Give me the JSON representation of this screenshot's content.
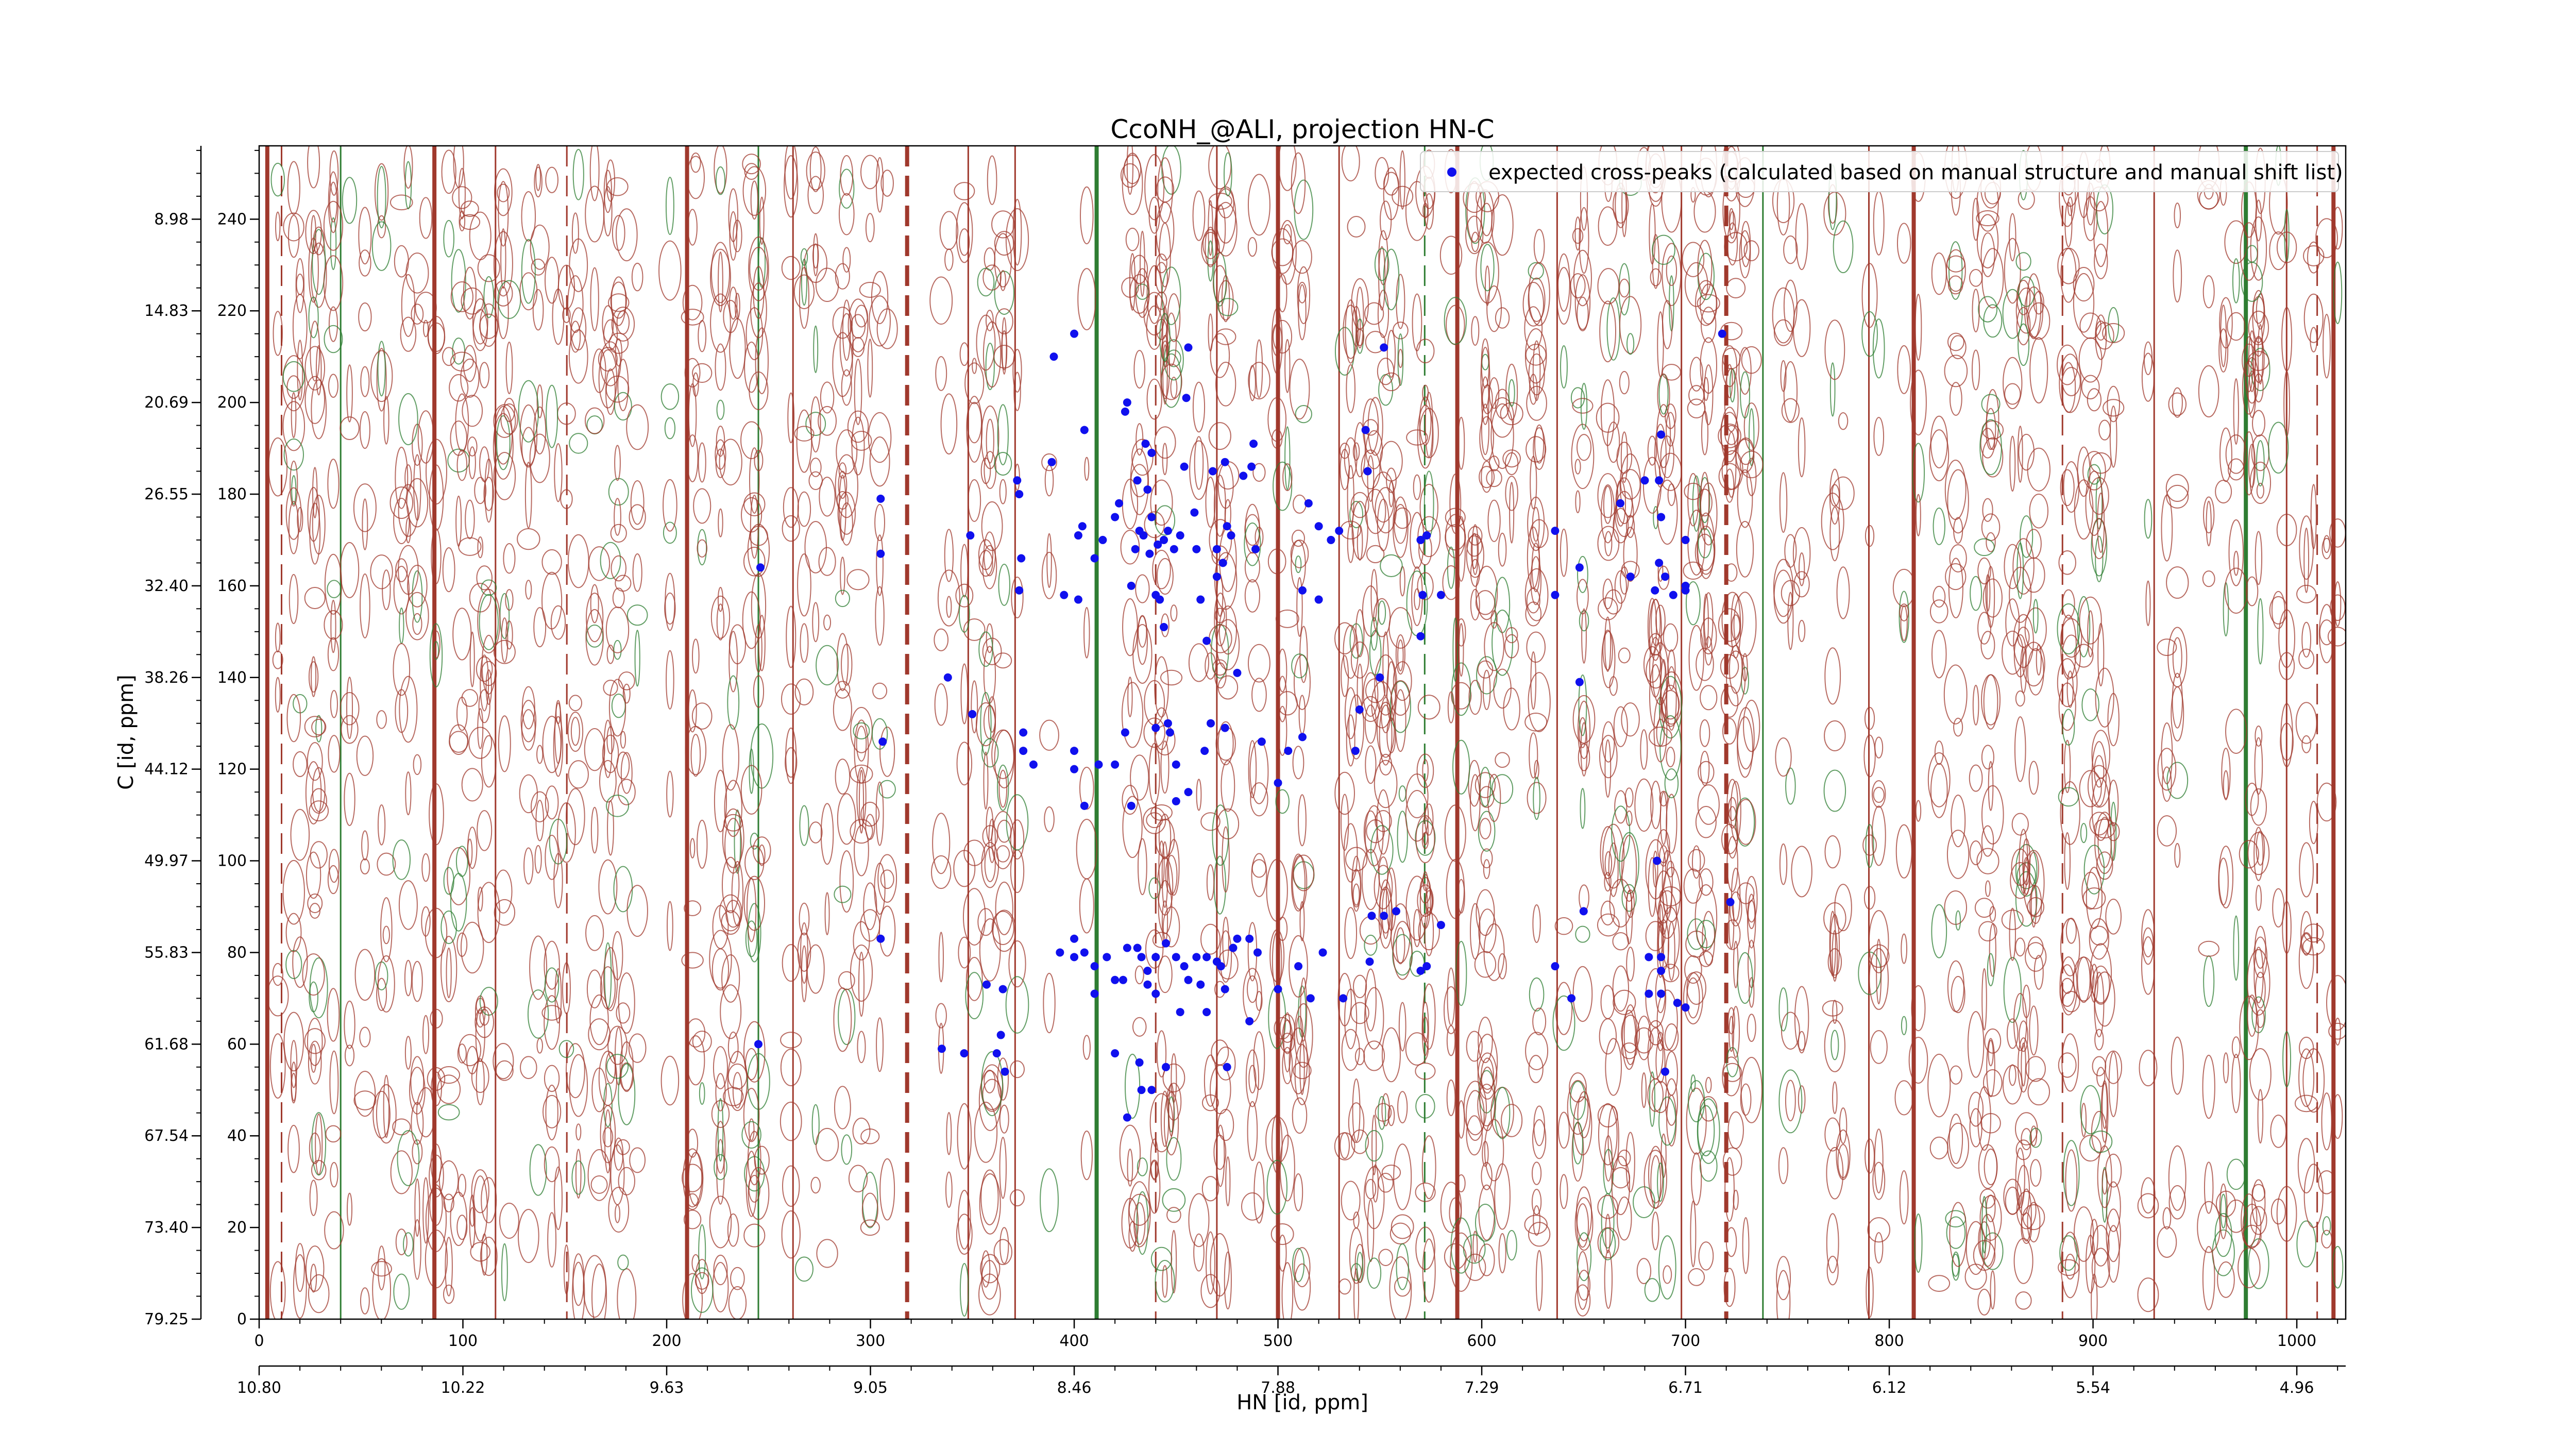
{
  "chart_data": {
    "type": "scatter",
    "title": "CcoNH_@ALI, projection HN-C",
    "xlabel": "HN [id, ppm]",
    "ylabel": "C [id, ppm]",
    "xlim": [
      0,
      1024
    ],
    "ylim": [
      0,
      256
    ],
    "x_ticks_index": [
      "0",
      "100",
      "200",
      "300",
      "400",
      "500",
      "600",
      "700",
      "800",
      "900",
      "1000"
    ],
    "x_ticks_ppm": [
      "10.80",
      "10.22",
      "9.63",
      "9.05",
      "8.46",
      "7.88",
      "7.29",
      "6.71",
      "6.12",
      "5.54",
      "4.96"
    ],
    "y_ticks_index": [
      "0",
      "20",
      "40",
      "60",
      "80",
      "100",
      "120",
      "140",
      "160",
      "180",
      "200",
      "220",
      "240"
    ],
    "y_ticks_ppm": [
      "79.25",
      "73.40",
      "67.54",
      "61.68",
      "55.83",
      "49.97",
      "44.12",
      "38.26",
      "32.40",
      "26.55",
      "20.69",
      "14.83",
      "8.98"
    ],
    "legend": {
      "placement": "top-right",
      "entries": [
        "expected cross-peaks (calculated based on manual structure and manual shift list)"
      ]
    },
    "colors": {
      "marker": "#1010ee",
      "contour_positive": "#a0392d",
      "contour_negative": "#2e7d32"
    },
    "grid": false,
    "background_contours": {
      "vertical_band_x": [
        4,
        11,
        40,
        86,
        116,
        151,
        210,
        245,
        262,
        318,
        348,
        371,
        411,
        440,
        470,
        500,
        530,
        572,
        588,
        637,
        698,
        720,
        738,
        790,
        812,
        885,
        930,
        975,
        995,
        1010,
        1018
      ]
    },
    "series": [
      {
        "name": "expected cross-peaks (calculated based on manual structure and manual shift list)",
        "points": [
          [
            305,
            179
          ],
          [
            305,
            167
          ],
          [
            306,
            126
          ],
          [
            305,
            83
          ],
          [
            246,
            164
          ],
          [
            245,
            60
          ],
          [
            338,
            140
          ],
          [
            349,
            171
          ],
          [
            350,
            132
          ],
          [
            335,
            59
          ],
          [
            346,
            58
          ],
          [
            357,
            73
          ],
          [
            362,
            58
          ],
          [
            365,
            72
          ],
          [
            364,
            62
          ],
          [
            366,
            54
          ],
          [
            372,
            183
          ],
          [
            374,
            166
          ],
          [
            373,
            159
          ],
          [
            373,
            180
          ],
          [
            375,
            128
          ],
          [
            375,
            124
          ],
          [
            389,
            187
          ],
          [
            390,
            210
          ],
          [
            400,
            215
          ],
          [
            405,
            194
          ],
          [
            395,
            158
          ],
          [
            402,
            171
          ],
          [
            402,
            157
          ],
          [
            404,
            173
          ],
          [
            410,
            166
          ],
          [
            400,
            124
          ],
          [
            405,
            112
          ],
          [
            414,
            170
          ],
          [
            420,
            175
          ],
          [
            422,
            178
          ],
          [
            425,
            128
          ],
          [
            425,
            198
          ],
          [
            426,
            200
          ],
          [
            428,
            112
          ],
          [
            428,
            160
          ],
          [
            430,
            168
          ],
          [
            431,
            183
          ],
          [
            432,
            172
          ],
          [
            434,
            171
          ],
          [
            435,
            191
          ],
          [
            436,
            181
          ],
          [
            437,
            167
          ],
          [
            438,
            189
          ],
          [
            438,
            175
          ],
          [
            440,
            158
          ],
          [
            440,
            129
          ],
          [
            441,
            169
          ],
          [
            442,
            157
          ],
          [
            444,
            151
          ],
          [
            444,
            170
          ],
          [
            446,
            172
          ],
          [
            446,
            130
          ],
          [
            447,
            128
          ],
          [
            449,
            168
          ],
          [
            450,
            113
          ],
          [
            452,
            171
          ],
          [
            454,
            186
          ],
          [
            455,
            201
          ],
          [
            456,
            115
          ],
          [
            456,
            212
          ],
          [
            459,
            176
          ],
          [
            460,
            168
          ],
          [
            462,
            157
          ],
          [
            464,
            124
          ],
          [
            465,
            148
          ],
          [
            467,
            130
          ],
          [
            468,
            185
          ],
          [
            470,
            162
          ],
          [
            470,
            168
          ],
          [
            473,
            165
          ],
          [
            474,
            129
          ],
          [
            474,
            187
          ],
          [
            475,
            173
          ],
          [
            477,
            171
          ],
          [
            480,
            141
          ],
          [
            483,
            184
          ],
          [
            487,
            186
          ],
          [
            488,
            191
          ],
          [
            489,
            168
          ],
          [
            492,
            126
          ],
          [
            500,
            117
          ],
          [
            505,
            124
          ],
          [
            512,
            127
          ],
          [
            512,
            159
          ],
          [
            520,
            157
          ],
          [
            515,
            178
          ],
          [
            520,
            173
          ],
          [
            526,
            170
          ],
          [
            530,
            172
          ],
          [
            538,
            124
          ],
          [
            540,
            133
          ],
          [
            543,
            194
          ],
          [
            544,
            185
          ],
          [
            550,
            140
          ],
          [
            552,
            212
          ],
          [
            558,
            89
          ],
          [
            570,
            170
          ],
          [
            573,
            171
          ],
          [
            571,
            158
          ],
          [
            570,
            149
          ],
          [
            580,
            158
          ],
          [
            636,
            172
          ],
          [
            636,
            158
          ],
          [
            648,
            164
          ],
          [
            648,
            139
          ],
          [
            650,
            89
          ],
          [
            636,
            77
          ],
          [
            644,
            70
          ],
          [
            668,
            178
          ],
          [
            673,
            162
          ],
          [
            680,
            183
          ],
          [
            687,
            183
          ],
          [
            687,
            165
          ],
          [
            685,
            159
          ],
          [
            688,
            175
          ],
          [
            688,
            193
          ],
          [
            690,
            162
          ],
          [
            694,
            158
          ],
          [
            700,
            170
          ],
          [
            700,
            160
          ],
          [
            700,
            159
          ],
          [
            686,
            100
          ],
          [
            690,
            54
          ],
          [
            682,
            79
          ],
          [
            688,
            79
          ],
          [
            688,
            76
          ],
          [
            682,
            71
          ],
          [
            688,
            71
          ],
          [
            696,
            69
          ],
          [
            722,
            91
          ],
          [
            718,
            215
          ],
          [
            400,
            120
          ],
          [
            400,
            83
          ],
          [
            393,
            80
          ],
          [
            400,
            79
          ],
          [
            405,
            80
          ],
          [
            410,
            77
          ],
          [
            416,
            79
          ],
          [
            410,
            71
          ],
          [
            420,
            74
          ],
          [
            424,
            74
          ],
          [
            426,
            81
          ],
          [
            431,
            81
          ],
          [
            433,
            79
          ],
          [
            436,
            76
          ],
          [
            436,
            73
          ],
          [
            440,
            79
          ],
          [
            440,
            71
          ],
          [
            445,
            82
          ],
          [
            450,
            79
          ],
          [
            454,
            77
          ],
          [
            456,
            74
          ],
          [
            460,
            79
          ],
          [
            462,
            73
          ],
          [
            465,
            79
          ],
          [
            465,
            67
          ],
          [
            470,
            78
          ],
          [
            472,
            77
          ],
          [
            474,
            72
          ],
          [
            478,
            81
          ],
          [
            480,
            83
          ],
          [
            486,
            83
          ],
          [
            486,
            65
          ],
          [
            490,
            80
          ],
          [
            500,
            72
          ],
          [
            510,
            77
          ],
          [
            516,
            70
          ],
          [
            522,
            80
          ],
          [
            532,
            70
          ],
          [
            545,
            78
          ],
          [
            546,
            88
          ],
          [
            552,
            88
          ],
          [
            570,
            76
          ],
          [
            573,
            77
          ],
          [
            580,
            86
          ],
          [
            700,
            68
          ],
          [
            432,
            56
          ],
          [
            420,
            58
          ],
          [
            433,
            50
          ],
          [
            445,
            55
          ],
          [
            452,
            67
          ],
          [
            475,
            55
          ],
          [
            426,
            44
          ],
          [
            438,
            50
          ],
          [
            380,
            121
          ],
          [
            412,
            121
          ],
          [
            420,
            121
          ],
          [
            450,
            121
          ]
        ]
      }
    ]
  }
}
